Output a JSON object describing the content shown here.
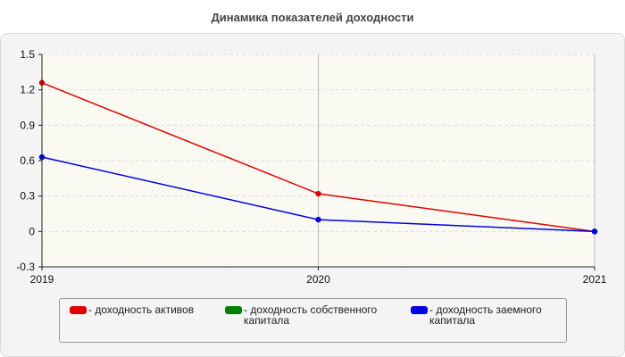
{
  "chart_data": {
    "type": "line",
    "title": "Динамика показателей доходности",
    "xlabel": "",
    "ylabel": "",
    "x": [
      "2019",
      "2020",
      "2021"
    ],
    "ylim": [
      -0.3,
      1.5
    ],
    "yticks": [
      "1.5",
      "1.2",
      "0.9",
      "0.6",
      "0.3",
      "0",
      "-0.3"
    ],
    "grid": true,
    "legend_position": "bottom",
    "series": [
      {
        "name": "- доходность активов",
        "color": "#e00000",
        "values": [
          1.26,
          0.32,
          0.0
        ],
        "visible": true
      },
      {
        "name": "- доходность собственного капитала",
        "color": "#008000",
        "values": [
          null,
          null,
          null
        ],
        "visible": false
      },
      {
        "name": "- доходность заемного капитала",
        "color": "#0000e0",
        "values": [
          0.63,
          0.1,
          0.0
        ],
        "visible": true
      }
    ]
  }
}
